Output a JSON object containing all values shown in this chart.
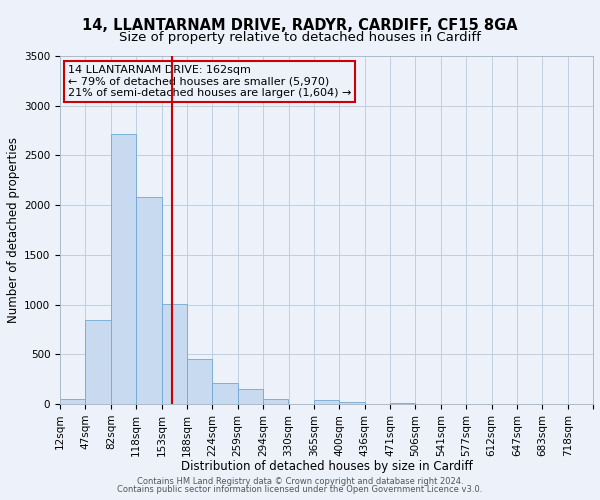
{
  "title": "14, LLANTARNAM DRIVE, RADYR, CARDIFF, CF15 8GA",
  "subtitle": "Size of property relative to detached houses in Cardiff",
  "xlabel": "Distribution of detached houses by size in Cardiff",
  "ylabel": "Number of detached properties",
  "bin_labels": [
    "12sqm",
    "47sqm",
    "82sqm",
    "118sqm",
    "153sqm",
    "188sqm",
    "224sqm",
    "259sqm",
    "294sqm",
    "330sqm",
    "365sqm",
    "400sqm",
    "436sqm",
    "471sqm",
    "506sqm",
    "541sqm",
    "577sqm",
    "612sqm",
    "647sqm",
    "683sqm",
    "718sqm"
  ],
  "bar_heights": [
    55,
    850,
    2720,
    2080,
    1010,
    455,
    210,
    150,
    55,
    0,
    40,
    25,
    0,
    15,
    5,
    5,
    0,
    0,
    5,
    0,
    0
  ],
  "bar_color": "#c8daef",
  "bar_edge_color": "#6fa8d4",
  "ylim": [
    0,
    3500
  ],
  "yticks": [
    0,
    500,
    1000,
    1500,
    2000,
    2500,
    3000,
    3500
  ],
  "property_line_x": 4.41,
  "annotation_line1": "14 LLANTARNAM DRIVE: 162sqm",
  "annotation_line2": "← 79% of detached houses are smaller (5,970)",
  "annotation_line3": "21% of semi-detached houses are larger (1,604) →",
  "footer_line1": "Contains HM Land Registry data © Crown copyright and database right 2024.",
  "footer_line2": "Contains public sector information licensed under the Open Government Licence v3.0.",
  "background_color": "#edf2fa",
  "grid_color": "#c0cfe0",
  "annotation_box_edge": "#cc0000",
  "vertical_line_color": "#cc0000",
  "title_fontsize": 10.5,
  "subtitle_fontsize": 9.5,
  "axis_label_fontsize": 8.5,
  "tick_fontsize": 7.5,
  "annotation_fontsize": 8,
  "footer_fontsize": 6
}
